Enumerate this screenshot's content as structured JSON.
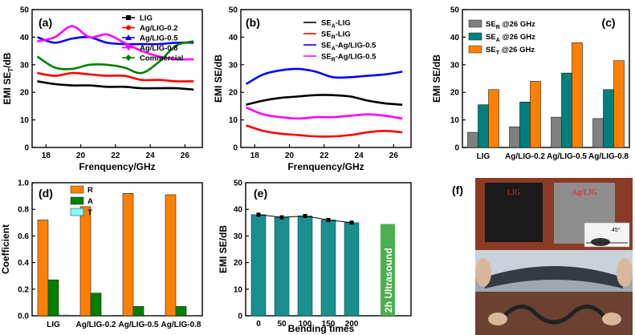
{
  "chart_data": [
    {
      "id": "a",
      "panel_label": "(a)",
      "type": "line",
      "xlabel": "Frenquency/GHz",
      "ylabel": "EMI SE",
      "ylabel_sub": "T",
      "ylabel_tail": "/dB",
      "xlim": [
        17.2,
        27
      ],
      "ylim": [
        0,
        50
      ],
      "xticks": [
        18,
        20,
        22,
        24,
        26
      ],
      "yticks": [
        0,
        10,
        20,
        30,
        40,
        50
      ],
      "x": [
        17.5,
        18.5,
        19.5,
        20.5,
        21.5,
        22.5,
        23.5,
        24.5,
        25.5,
        26.5
      ],
      "series": [
        {
          "name": "LIG",
          "color": "#000000",
          "marker": "square",
          "values": [
            24,
            23,
            22.5,
            22.5,
            22,
            22,
            21.5,
            21.5,
            21.5,
            21
          ]
        },
        {
          "name": "Ag/LIG-0.2",
          "color": "#ff0000",
          "marker": "circle",
          "values": [
            27,
            26,
            27,
            26.5,
            26,
            26,
            24.5,
            24.5,
            24,
            24
          ]
        },
        {
          "name": "Ag/LIG-0.5",
          "color": "#0000ff",
          "marker": "triangle",
          "values": [
            40,
            38,
            39.5,
            40,
            38,
            37.5,
            37.5,
            37.5,
            38,
            38
          ]
        },
        {
          "name": "Ag/LIG-0.8",
          "color": "#ff00ff",
          "marker": "triangle-down",
          "values": [
            38.5,
            40,
            44,
            40,
            41,
            38,
            35,
            33,
            32,
            32
          ]
        },
        {
          "name": "Commercial",
          "color": "#008000",
          "marker": "diamond",
          "values": [
            33,
            29,
            28.5,
            30,
            30,
            29,
            27,
            31,
            37,
            38.5
          ]
        }
      ]
    },
    {
      "id": "b",
      "panel_label": "(b)",
      "type": "line",
      "xlabel": "Frenquency/GHz",
      "ylabel": "EMI SE/dB",
      "xlim": [
        17.2,
        27
      ],
      "ylim": [
        0,
        50
      ],
      "xticks": [
        18,
        20,
        22,
        24,
        26
      ],
      "yticks": [
        0,
        10,
        20,
        30,
        40,
        50
      ],
      "x": [
        17.5,
        18.5,
        19.5,
        20.5,
        21.5,
        22.5,
        23.5,
        24.5,
        25.5,
        26.5
      ],
      "series": [
        {
          "name": "SEA-LIG",
          "label_main": "SE",
          "label_sub": "A",
          "label_tail": "-LIG",
          "color": "#000000",
          "values": [
            15.5,
            17,
            18,
            18.5,
            19,
            19,
            18.5,
            17,
            16,
            15.5
          ]
        },
        {
          "name": "SER-LIG",
          "label_main": "SE",
          "label_sub": "R",
          "label_tail": "-LIG",
          "color": "#ff0000",
          "values": [
            8,
            6,
            5,
            4.5,
            4,
            4,
            4.5,
            5.5,
            6,
            5.5
          ]
        },
        {
          "name": "SEA-Ag/LIG-0.5",
          "label_main": "SE",
          "label_sub": "A",
          "label_tail": "-Ag/LIG-0.5",
          "color": "#0000ff",
          "values": [
            23,
            26.5,
            28,
            28.5,
            27.5,
            25.5,
            25.5,
            26,
            26.5,
            27.5
          ]
        },
        {
          "name": "SER-Ag/LIG-0.5",
          "label_main": "SE",
          "label_sub": "R",
          "label_tail": "-Ag/LIG-0.5",
          "color": "#ff00ff",
          "values": [
            14.5,
            12,
            11,
            10.5,
            11,
            11,
            11.5,
            12,
            11.5,
            10.5
          ]
        }
      ]
    },
    {
      "id": "c",
      "panel_label": "(c)",
      "type": "bar",
      "ylabel": "EMI SE/dB",
      "ylim": [
        0,
        50
      ],
      "yticks": [
        0,
        10,
        20,
        30,
        40,
        50
      ],
      "categories": [
        "LIG",
        "Ag/LIG-0.2",
        "Ag/LIG-0.5",
        "Ag/LIG-0.8"
      ],
      "series": [
        {
          "name": "SER @26 GHz",
          "label_main": "SE",
          "label_sub": "R",
          "label_tail": " @26 GHz",
          "color": "#808080",
          "values": [
            5.5,
            7.5,
            11,
            10.5
          ]
        },
        {
          "name": "SEA @26 GHz",
          "label_main": "SE",
          "label_sub": "A",
          "label_tail": " @26 GHz",
          "color": "#007f7f",
          "values": [
            15.5,
            16.5,
            27,
            21
          ]
        },
        {
          "name": "SET @26 GHz",
          "label_main": "SE",
          "label_sub": "T",
          "label_tail": " @26 GHz",
          "color": "#ff8000",
          "values": [
            21,
            24,
            38,
            31.5
          ]
        }
      ]
    },
    {
      "id": "d",
      "panel_label": "(d)",
      "type": "bar",
      "ylabel": "Coefficient",
      "ylim": [
        0,
        1.0
      ],
      "yticks": [
        0.0,
        0.2,
        0.4,
        0.6,
        0.8,
        1.0
      ],
      "categories": [
        "LIG",
        "Ag/LIG-0.2",
        "Ag/LIG-0.5",
        "Ag/LIG-0.8"
      ],
      "series": [
        {
          "name": "R",
          "color": "#ff8000",
          "values": [
            0.72,
            0.82,
            0.92,
            0.91
          ]
        },
        {
          "name": "A",
          "color": "#008000",
          "values": [
            0.27,
            0.17,
            0.07,
            0.07
          ]
        },
        {
          "name": "T",
          "color": "#80ffff",
          "values": [
            0.005,
            0.003,
            0.002,
            0.002
          ]
        }
      ]
    },
    {
      "id": "e",
      "panel_label": "(e)",
      "type": "bar",
      "xlabel": "Bending times",
      "ylabel": "EMI SE/dB",
      "ylim": [
        0,
        50
      ],
      "yticks": [
        0,
        10,
        20,
        30,
        40,
        50
      ],
      "categories": [
        "0",
        "50",
        "100",
        "150",
        "200"
      ],
      "values": [
        38,
        37,
        37.5,
        36,
        35
      ],
      "color": "#1a8f8f",
      "extra_bar": {
        "label": "2h Ultrasound",
        "value": 34.5,
        "color": "#4caf50"
      }
    }
  ],
  "photo": {
    "panel_label": "(f)",
    "left_sample_label": "LIG",
    "right_sample_label": "Ag/LIG",
    "contact_angle": "45°"
  }
}
